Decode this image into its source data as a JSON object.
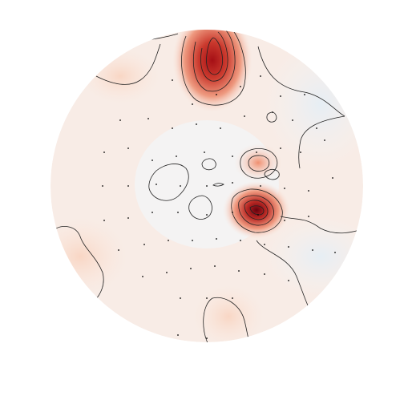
{
  "chart_data": {
    "type": "topomap"
  }
}
